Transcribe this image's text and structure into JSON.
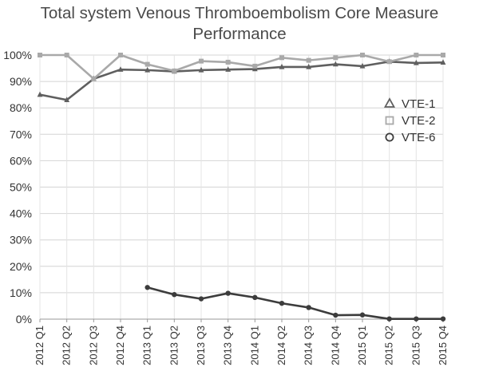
{
  "chart_data": {
    "type": "line",
    "title_lines": [
      "Total system Venous Thromboembolism Core Measure",
      "Performance"
    ],
    "categories": [
      "2012 Q1",
      "2012 Q2",
      "2012 Q3",
      "2012 Q4",
      "2013 Q1",
      "2013 Q2",
      "2013 Q3",
      "2013 Q4",
      "2014 Q1",
      "2014 Q2",
      "2014 Q3",
      "2014 Q4",
      "2015 Q1",
      "2015 Q2",
      "2015 Q3",
      "2015 Q4"
    ],
    "y_ticks": [
      "0%",
      "10%",
      "20%",
      "30%",
      "40%",
      "50%",
      "60%",
      "70%",
      "80%",
      "90%",
      "100%"
    ],
    "ylim": [
      0,
      100
    ],
    "grid": true,
    "legend_position": "right",
    "series": [
      {
        "name": "VTE-1",
        "marker": "triangle",
        "color": "#5f5f5f",
        "values": [
          85,
          83,
          91,
          94.5,
          94.3,
          93.8,
          94.3,
          94.5,
          94.7,
          95.5,
          95.5,
          96.5,
          95.8,
          97.5,
          97,
          97.2
        ]
      },
      {
        "name": "VTE-2",
        "marker": "square",
        "color": "#a9a9a9",
        "values": [
          100,
          100,
          91,
          100,
          96.5,
          94,
          97.7,
          97.3,
          95.8,
          99,
          98,
          99,
          100,
          97.5,
          100,
          100
        ]
      },
      {
        "name": "VTE-6",
        "marker": "circle",
        "color": "#3c3c3c",
        "values": [
          null,
          null,
          null,
          null,
          12,
          9.3,
          7.7,
          9.8,
          8.2,
          6,
          4.4,
          1.5,
          1.6,
          0.1,
          0.1,
          0.1
        ]
      }
    ]
  }
}
